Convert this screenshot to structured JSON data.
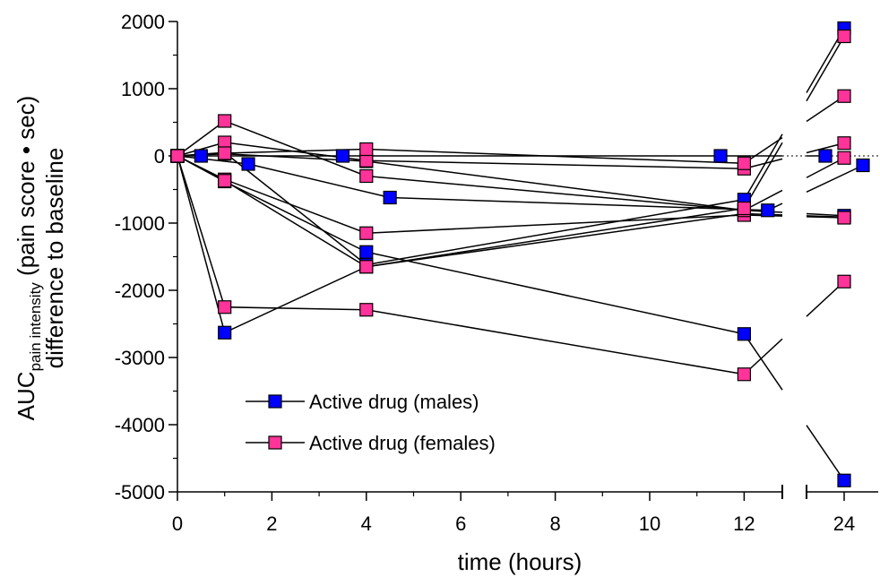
{
  "chart_data": {
    "type": "line",
    "xlabel": "time (hours)",
    "ylabel_main": "AUC",
    "ylabel_sub": "pain intensity",
    "ylabel_rest": " (pain score • sec)",
    "ylabel_line2": "difference to baseline",
    "x_ticks": [
      "0",
      "2",
      "4",
      "6",
      "8",
      "10",
      "12",
      "24"
    ],
    "y_ticks": [
      "2000",
      "1000",
      "0",
      "-1000",
      "-2000",
      "-3000",
      "-4000",
      "-5000"
    ],
    "ylim": [
      -5000,
      2000
    ],
    "xlim_segment1": [
      0,
      13
    ],
    "xlim_segment2": [
      23,
      25
    ],
    "axis_break": "between 13 and 23 hours",
    "zero_reference_line": "dotted",
    "grid": false,
    "legend_position": "lower-left",
    "colors": {
      "males": "#0000ff",
      "females": "#ff3399",
      "line": "#000000"
    },
    "series": [
      {
        "name": "Active drug (males)",
        "group": "males",
        "points": [
          {
            "x": 0,
            "y": 0,
            "segments": [
              [
                [
                  0,
                  0
                ],
                [
                  1,
                  -2630
                ],
                [
                  4,
                  -1650
                ],
                [
                  12,
                  -860
                ],
                [
                  24,
                  -910
                ]
              ],
              [
                [
                  0,
                  0
                ],
                [
                  1,
                  -380
                ],
                [
                  4,
                  -1430
                ],
                [
                  12,
                  -2650
                ],
                [
                  24,
                  -4830
                ]
              ],
              [
                [
                  0,
                  0
                ],
                [
                  1,
                  50
                ],
                [
                  4,
                  -1620
                ],
                [
                  12,
                  -650
                ],
                [
                  24,
                  1900
                ]
              ],
              [
                [
                  0,
                  0
                ],
                [
                  1,
                  30
                ],
                [
                  4,
                  -80
                ],
                [
                  12,
                  -810
                ],
                [
                  24,
                  -890
                ]
              ],
              [
                [
                  0,
                  0
                ],
                [
                  0.5,
                  0
                ],
                [
                  3.5,
                  0
                ],
                [
                  11.5,
                  0
                ],
                [
                  23.5,
                  0
                ]
              ],
              [
                [
                  0,
                  0
                ],
                [
                  1.5,
                  -120
                ],
                [
                  4.5,
                  -620
                ],
                [
                  12.5,
                  -810
                ],
                [
                  24.5,
                  -140
                ]
              ]
            ]
          }
        ]
      },
      {
        "name": "Active drug (females)",
        "group": "females",
        "segments": [
          [
            [
              0,
              0
            ],
            [
              1,
              -2250
            ],
            [
              4,
              -2290
            ],
            [
              12,
              -3250
            ],
            [
              24,
              -1870
            ]
          ],
          [
            [
              0,
              0
            ],
            [
              1,
              -350
            ],
            [
              4,
              -1150
            ],
            [
              12,
              -880
            ],
            [
              24,
              -920
            ]
          ],
          [
            [
              0,
              0
            ],
            [
              1,
              520
            ],
            [
              4,
              -300
            ],
            [
              12,
              -810
            ],
            [
              24,
              -30
            ]
          ],
          [
            [
              0,
              0
            ],
            [
              1,
              200
            ],
            [
              4,
              -70
            ],
            [
              12,
              -190
            ],
            [
              24,
              190
            ]
          ],
          [
            [
              0,
              0
            ],
            [
              1,
              40
            ],
            [
              4,
              100
            ],
            [
              12,
              -110
            ],
            [
              24,
              890
            ]
          ],
          [
            [
              0,
              0
            ],
            [
              1,
              -370
            ],
            [
              4,
              -1650
            ],
            [
              12,
              -780
            ],
            [
              24,
              1780
            ]
          ]
        ]
      }
    ]
  },
  "legend": {
    "males": "Active drug (males)",
    "females": "Active drug (females)"
  }
}
